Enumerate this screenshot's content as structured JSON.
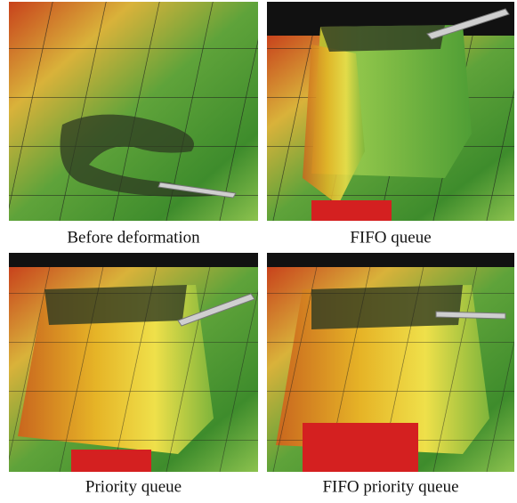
{
  "panels": [
    {
      "caption": "Before deformation"
    },
    {
      "caption": "FIFO queue"
    },
    {
      "caption": "Priority queue"
    },
    {
      "caption": "FIFO priority queue"
    }
  ]
}
